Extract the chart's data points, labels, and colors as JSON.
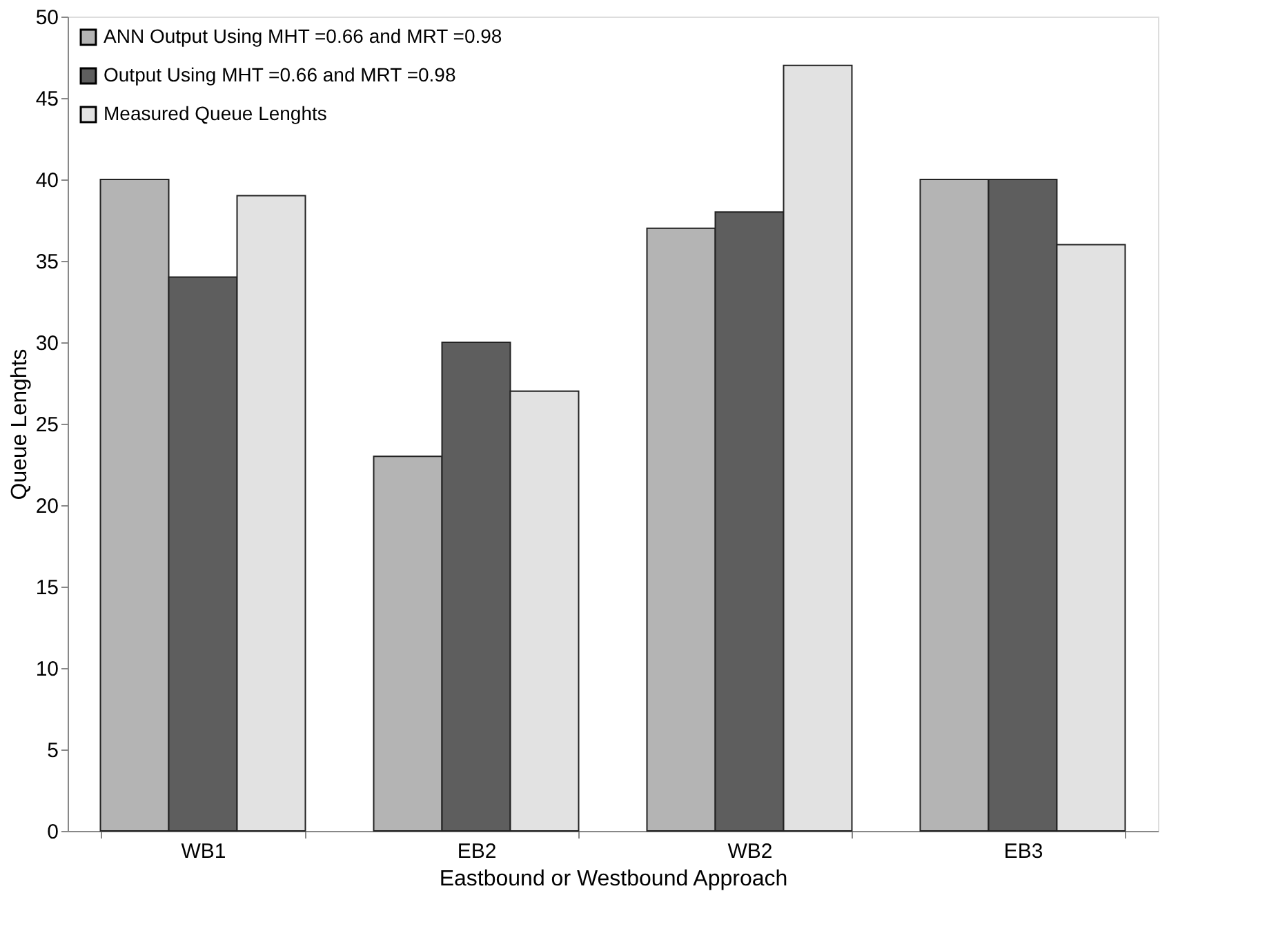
{
  "chart_data": {
    "type": "bar",
    "xlabel": "Eastbound or Westbound Approach",
    "ylabel": "Queue Lenghts",
    "categories": [
      "WB1",
      "EB2",
      "WB2",
      "EB3"
    ],
    "series": [
      {
        "name": "ANN Output Using MHT =0.66 and MRT =0.98",
        "color": "#b4b4b4",
        "values": [
          40,
          23,
          37,
          40
        ]
      },
      {
        "name": "Output Using MHT =0.66 and MRT =0.98",
        "color": "#5e5e5e",
        "values": [
          34,
          30,
          38,
          40
        ]
      },
      {
        "name": "Measured Queue Lenghts",
        "color": "#e2e2e2",
        "values": [
          39,
          27,
          47,
          36
        ]
      }
    ],
    "ylim": [
      0,
      50
    ],
    "yticks": [
      0,
      5,
      10,
      15,
      20,
      25,
      30,
      35,
      40,
      45,
      50
    ],
    "grid": false,
    "legend": "top left"
  }
}
